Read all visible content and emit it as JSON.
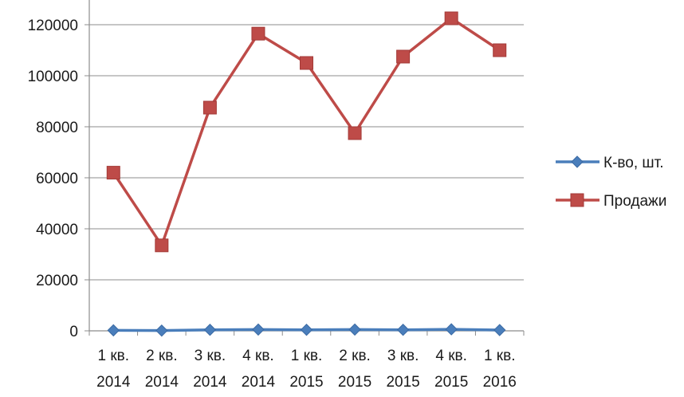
{
  "chart_data": {
    "type": "line",
    "categories": [
      [
        "1 кв.",
        "2014"
      ],
      [
        "2 кв.",
        "2014"
      ],
      [
        "3 кв.",
        "2014"
      ],
      [
        "4 кв.",
        "2014"
      ],
      [
        "1 кв.",
        "2015"
      ],
      [
        "2 кв.",
        "2015"
      ],
      [
        "3 кв.",
        "2015"
      ],
      [
        "4 кв.",
        "2015"
      ],
      [
        "1 кв.",
        "2016"
      ]
    ],
    "ylim": [
      0,
      120000
    ],
    "yticks": [
      "0",
      "20000",
      "40000",
      "60000",
      "80000",
      "100000",
      "120000"
    ],
    "ytick_values": [
      0,
      20000,
      40000,
      60000,
      80000,
      100000,
      120000
    ],
    "grid": true,
    "legend_position": "right",
    "series": [
      {
        "name": "К-во, шт.",
        "color": "#4a7ebb",
        "marker": "diamond",
        "values": [
          200,
          100,
          400,
          500,
          400,
          500,
          400,
          600,
          300
        ]
      },
      {
        "name": "Продажи",
        "color": "#be4b48",
        "marker": "square",
        "values": [
          62000,
          33500,
          87500,
          116500,
          105000,
          77500,
          107500,
          122500,
          110000
        ]
      }
    ]
  }
}
